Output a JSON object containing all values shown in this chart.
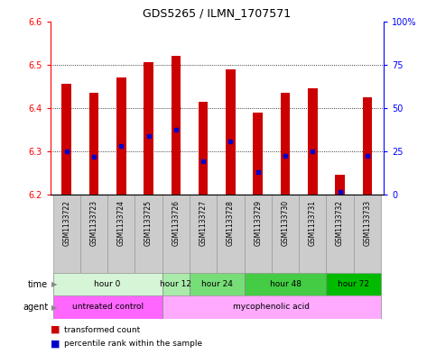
{
  "title": "GDS5265 / ILMN_1707571",
  "samples": [
    "GSM1133722",
    "GSM1133723",
    "GSM1133724",
    "GSM1133725",
    "GSM1133726",
    "GSM1133727",
    "GSM1133728",
    "GSM1133729",
    "GSM1133730",
    "GSM1133731",
    "GSM1133732",
    "GSM1133733"
  ],
  "bar_tops": [
    6.455,
    6.435,
    6.47,
    6.505,
    6.52,
    6.415,
    6.49,
    6.39,
    6.435,
    6.445,
    6.245,
    6.425
  ],
  "bar_bottom": 6.2,
  "percentile_values": [
    6.3,
    6.287,
    6.313,
    6.335,
    6.35,
    6.277,
    6.323,
    6.253,
    6.289,
    6.3,
    6.207,
    6.289
  ],
  "ylim": [
    6.2,
    6.6
  ],
  "yticks_left": [
    6.2,
    6.3,
    6.4,
    6.5,
    6.6
  ],
  "yticks_right_vals": [
    0,
    25,
    50,
    75,
    100
  ],
  "yticks_right_pos": [
    6.2,
    6.3,
    6.4,
    6.5,
    6.6
  ],
  "bar_color": "#cc0000",
  "percentile_color": "#0000cc",
  "time_groups": [
    {
      "label": "hour 0",
      "start": 0,
      "end": 3,
      "color": "#d6f5d6"
    },
    {
      "label": "hour 12",
      "start": 4,
      "end": 4,
      "color": "#aaeaaa"
    },
    {
      "label": "hour 24",
      "start": 5,
      "end": 6,
      "color": "#77dd77"
    },
    {
      "label": "hour 48",
      "start": 7,
      "end": 9,
      "color": "#44cc44"
    },
    {
      "label": "hour 72",
      "start": 10,
      "end": 11,
      "color": "#00bb00"
    }
  ],
  "agent_groups": [
    {
      "label": "untreated control",
      "start": 0,
      "end": 3,
      "color": "#ff66ff"
    },
    {
      "label": "mycophenolic acid",
      "start": 4,
      "end": 11,
      "color": "#ffaaff"
    }
  ],
  "legend_red": "transformed count",
  "legend_blue": "percentile rank within the sample"
}
